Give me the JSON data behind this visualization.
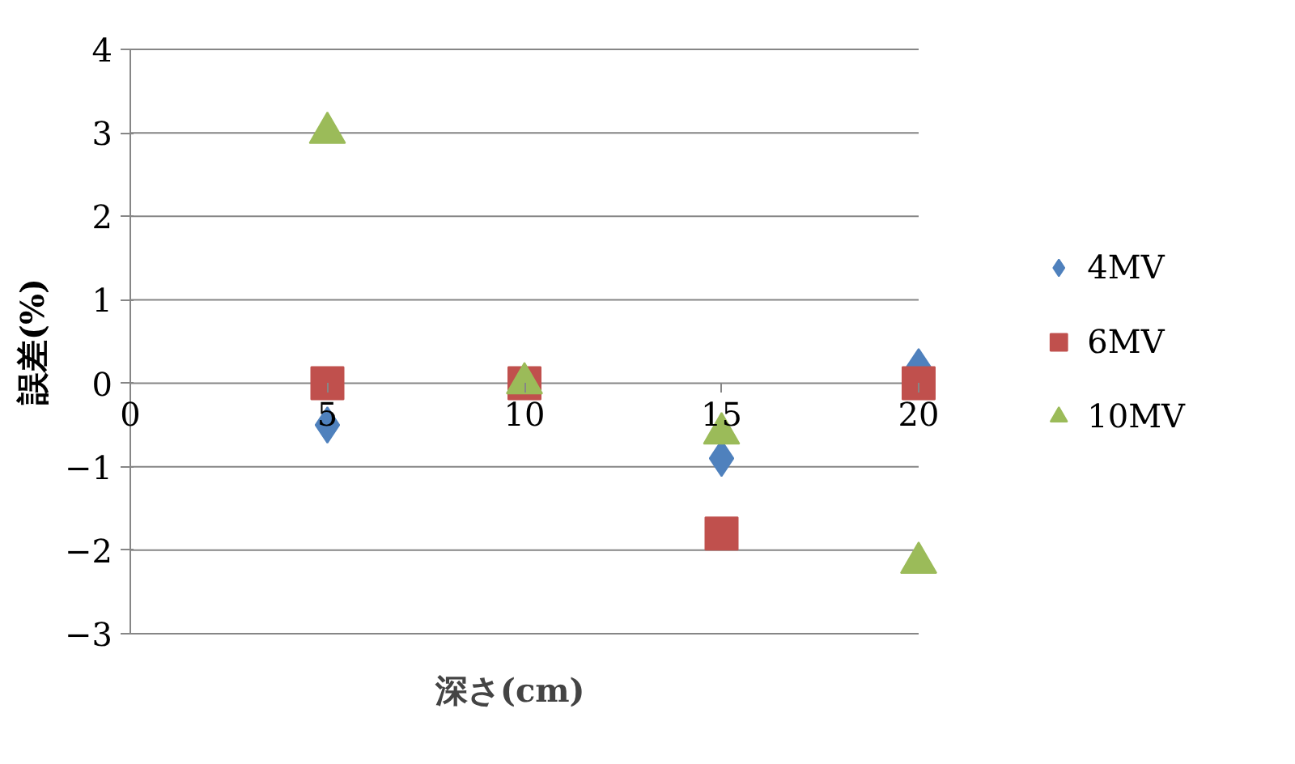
{
  "chart_data": {
    "type": "scatter",
    "xlabel": "深さ(cm)",
    "ylabel": "誤差(%)",
    "x": [
      5,
      10,
      15,
      20
    ],
    "series": [
      {
        "name": "4MV",
        "color": "#4f81bd",
        "marker": "diamond",
        "values": [
          -0.5,
          null,
          -0.9,
          0.2
        ]
      },
      {
        "name": "6MV",
        "color": "#c0504d",
        "marker": "square",
        "values": [
          0,
          0,
          -1.8,
          0
        ]
      },
      {
        "name": "10MV",
        "color": "#9bbb59",
        "marker": "triangle",
        "values": [
          3,
          0,
          -0.6,
          -2.15
        ]
      }
    ],
    "xlim": [
      0,
      20
    ],
    "xticks": [
      0,
      5,
      10,
      15,
      20
    ],
    "ylim": [
      -3,
      4
    ],
    "yticks": [
      -3,
      -2,
      -1,
      0,
      1,
      2,
      3,
      4
    ],
    "grid": "y",
    "legend": "right"
  }
}
